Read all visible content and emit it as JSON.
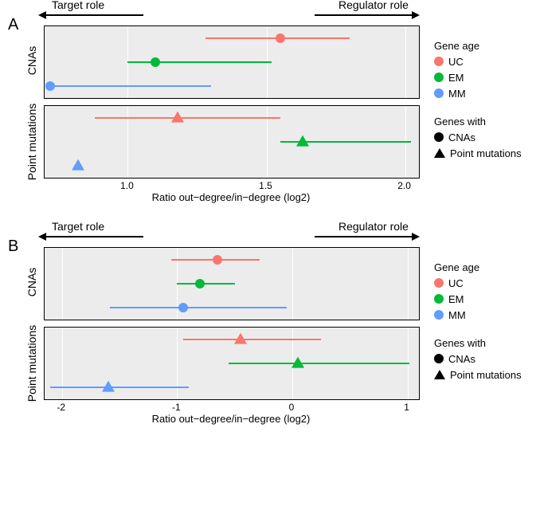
{
  "colors": {
    "UC": "#f8766d",
    "EM": "#00ba38",
    "MM": "#619cff",
    "panel_bg": "#ececec",
    "grid": "#ffffff"
  },
  "header": {
    "left_label": "Target role",
    "right_label": "Regulator role"
  },
  "legend": {
    "age_title": "Gene age",
    "ages": [
      "UC",
      "EM",
      "MM"
    ],
    "shape_title": "Genes with",
    "shapes": [
      {
        "name": "CNAs",
        "marker": "circle"
      },
      {
        "name": "Point mutations",
        "marker": "triangle"
      }
    ]
  },
  "x_axis_label": "Ratio out−degree/in−degree (log2)",
  "panels": {
    "A": {
      "label": "A",
      "x_domain": [
        0.7,
        2.05
      ],
      "x_ticks": [
        1.0,
        1.5,
        2.0
      ],
      "sub": {
        "CNAs": {
          "ylab": "CNAs",
          "series": [
            {
              "age": "UC",
              "marker": "circle",
              "x": 1.55,
              "lo": 1.28,
              "hi": 1.8
            },
            {
              "age": "EM",
              "marker": "circle",
              "x": 1.1,
              "lo": 1.0,
              "hi": 1.52
            },
            {
              "age": "MM",
              "marker": "circle",
              "x": 0.72,
              "lo": 0.72,
              "hi": 1.3
            }
          ]
        },
        "PM": {
          "ylab": "Point mutations",
          "series": [
            {
              "age": "UC",
              "marker": "triangle",
              "x": 1.18,
              "lo": 0.88,
              "hi": 1.55
            },
            {
              "age": "EM",
              "marker": "triangle",
              "x": 1.63,
              "lo": 1.55,
              "hi": 2.02
            },
            {
              "age": "MM",
              "marker": "triangle",
              "x": 0.82,
              "lo": 0.82,
              "hi": 0.82
            }
          ]
        }
      }
    },
    "B": {
      "label": "B",
      "x_domain": [
        -2.15,
        1.1
      ],
      "x_ticks": [
        -2,
        -1,
        0,
        1
      ],
      "sub": {
        "CNAs": {
          "ylab": "CNAs",
          "series": [
            {
              "age": "UC",
              "marker": "circle",
              "x": -0.65,
              "lo": -1.05,
              "hi": -0.28
            },
            {
              "age": "EM",
              "marker": "circle",
              "x": -0.8,
              "lo": -1.0,
              "hi": -0.5
            },
            {
              "age": "MM",
              "marker": "circle",
              "x": -0.95,
              "lo": -1.58,
              "hi": -0.05
            }
          ]
        },
        "PM": {
          "ylab": "Point mutations",
          "series": [
            {
              "age": "UC",
              "marker": "triangle",
              "x": -0.45,
              "lo": -0.95,
              "hi": 0.25
            },
            {
              "age": "EM",
              "marker": "triangle",
              "x": 0.05,
              "lo": -0.55,
              "hi": 1.02
            },
            {
              "age": "MM",
              "marker": "triangle",
              "x": -1.6,
              "lo": -2.1,
              "hi": -0.9
            }
          ]
        }
      }
    }
  }
}
